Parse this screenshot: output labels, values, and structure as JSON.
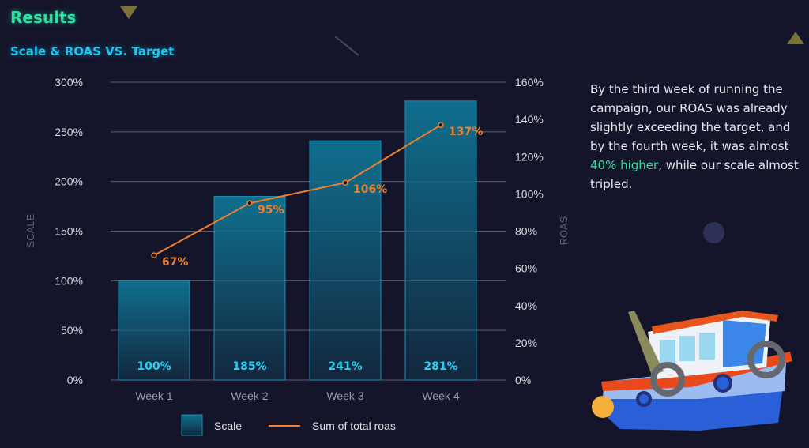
{
  "header": {
    "title": "Results",
    "subtitle": "Scale & ROAS VS. Target"
  },
  "description": {
    "before": "By the third week of running the campaign, our ROAS was already slightly exceeding the target, and by the fourth week, it was almost ",
    "highlight": "40% higher",
    "after": ", while our scale almost tripled."
  },
  "colors": {
    "bar": "#0f6f8e",
    "line": "#f0812c",
    "bar_label": "#27d3f5",
    "grid": "#5a5c70",
    "background": "#14152a"
  },
  "chart_data": {
    "type": "bar",
    "title": "Scale & ROAS VS. Target",
    "categories": [
      "Week 1",
      "Week 2",
      "Week 3",
      "Week 4"
    ],
    "ylabel": "SCALE",
    "y2label": "ROAS",
    "ylim": [
      0,
      300
    ],
    "y2lim": [
      0,
      160
    ],
    "yticks": [
      "0%",
      "50%",
      "100%",
      "150%",
      "200%",
      "250%",
      "300%"
    ],
    "y2ticks": [
      "0%",
      "20%",
      "40%",
      "60%",
      "80%",
      "100%",
      "120%",
      "140%",
      "160%"
    ],
    "grid": true,
    "legend": "bottom",
    "series": [
      {
        "name": "Scale",
        "type": "bar",
        "axis": "left",
        "values": [
          100,
          185,
          241,
          281
        ],
        "labels": [
          "100%",
          "185%",
          "241%",
          "281%"
        ]
      },
      {
        "name": "Sum of total roas",
        "type": "line",
        "axis": "right",
        "values": [
          67,
          95,
          106,
          137
        ],
        "labels": [
          "67%",
          "95%",
          "106%",
          "137%"
        ]
      }
    ]
  }
}
